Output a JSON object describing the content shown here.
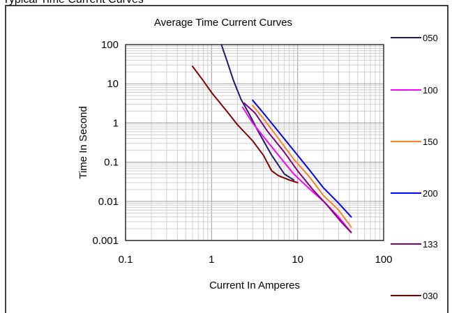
{
  "header_fragment": "Typical Time Current Curves",
  "chart_data": {
    "type": "line",
    "title": "Average Time Current Curves",
    "xlabel": "Current In Amperes",
    "ylabel": "Time In Second",
    "xscale": "log",
    "yscale": "log",
    "xlim": [
      0.1,
      100
    ],
    "ylim": [
      0.001,
      100
    ],
    "x_tick_labels": [
      "0.1",
      "1",
      "10",
      "100"
    ],
    "y_tick_labels": [
      "100",
      "10",
      "1",
      "0.1",
      "0.01",
      "0.001"
    ],
    "grid": true,
    "legend_position": "right",
    "series": [
      {
        "name": "050",
        "color": "#1a1a6e",
        "points": [
          [
            1.3,
            100
          ],
          [
            1.5,
            40
          ],
          [
            1.8,
            12
          ],
          [
            2.2,
            4
          ],
          [
            2.7,
            1.8
          ],
          [
            3.5,
            0.6
          ],
          [
            5,
            0.15
          ],
          [
            7,
            0.05
          ],
          [
            9,
            0.035
          ]
        ]
      },
      {
        "name": "100",
        "color": "#ff00ff",
        "points": [
          [
            2.3,
            2.5
          ],
          [
            3,
            1
          ],
          [
            4,
            0.45
          ],
          [
            6,
            0.15
          ],
          [
            9,
            0.05
          ],
          [
            14,
            0.02
          ],
          [
            20,
            0.01
          ],
          [
            30,
            0.004
          ],
          [
            42,
            0.0016
          ]
        ]
      },
      {
        "name": "150",
        "color": "#ff7f27",
        "points": [
          [
            3,
            2.8
          ],
          [
            4,
            1.3
          ],
          [
            6,
            0.4
          ],
          [
            9,
            0.12
          ],
          [
            14,
            0.04
          ],
          [
            20,
            0.014
          ],
          [
            30,
            0.006
          ],
          [
            42,
            0.0022
          ]
        ]
      },
      {
        "name": "200",
        "color": "#0000ff",
        "points": [
          [
            3,
            3.8
          ],
          [
            4,
            1.8
          ],
          [
            6,
            0.6
          ],
          [
            9,
            0.2
          ],
          [
            14,
            0.06
          ],
          [
            20,
            0.022
          ],
          [
            30,
            0.009
          ],
          [
            42,
            0.004
          ]
        ]
      },
      {
        "name": "133",
        "color": "#800080",
        "points": [
          [
            2.4,
            3.2
          ],
          [
            3.2,
            1.8
          ],
          [
            4.5,
            0.6
          ],
          [
            7,
            0.18
          ],
          [
            10,
            0.06
          ],
          [
            15,
            0.02
          ],
          [
            22,
            0.008
          ],
          [
            32,
            0.003
          ],
          [
            42,
            0.0016
          ]
        ]
      },
      {
        "name": "030",
        "color": "#800000",
        "points": [
          [
            0.6,
            28
          ],
          [
            0.8,
            12
          ],
          [
            1,
            6
          ],
          [
            1.5,
            2
          ],
          [
            2,
            0.9
          ],
          [
            3,
            0.35
          ],
          [
            4,
            0.15
          ],
          [
            5,
            0.06
          ],
          [
            6,
            0.045
          ],
          [
            8,
            0.035
          ],
          [
            10,
            0.03
          ]
        ]
      }
    ]
  }
}
